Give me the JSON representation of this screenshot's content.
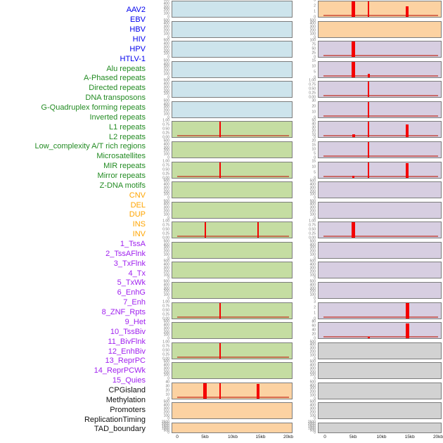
{
  "chart_data": {
    "type": "bar",
    "title": "",
    "description": "Two columns of stacked genomic mini-track bar panels over a 20kb window; red spikes mark peak loci",
    "x_axis": {
      "tick_labels": [
        "0",
        "5kb",
        "10kb",
        "15kb",
        "20kb"
      ],
      "tick_kb": [
        0,
        5,
        10,
        15,
        20
      ],
      "range_kb": [
        0,
        20
      ]
    },
    "peak_positions_kb": [
      5.0,
      7.7,
      14.6
    ],
    "category_colors": {
      "virus": "#0000EE",
      "repeat": "#228B22",
      "sv": "#FFA500",
      "chromatin": "#A021EF",
      "other": "#111111"
    },
    "panel_fills": {
      "blue": "#cde4ec",
      "green": "#c5dda2",
      "orange": "#fcd2a2",
      "purple": "#d7cee1",
      "gray": "#d2d2d2"
    },
    "spike_color": "#f40000",
    "baseline_color": "rgba(190,40,25,0.6)",
    "tick_sets": {
      "count500": [
        "500",
        "400",
        "300",
        "200",
        "100",
        "0"
      ],
      "frac": [
        "1.00",
        "0.75",
        "0.50",
        "0.25",
        "0.00"
      ],
      "dense2k": [
        "2500",
        "2000",
        "1500",
        "1000",
        "500",
        "0"
      ],
      "c40": [
        "40",
        "30",
        "20",
        "10",
        "0"
      ],
      "c3": [
        "3",
        "2",
        "1",
        "0"
      ],
      "c100": [
        "100",
        "75",
        "50",
        "25",
        "0"
      ],
      "c15": [
        "15",
        "10",
        "5",
        "0"
      ],
      "c30": [
        "30",
        "20",
        "10",
        "0"
      ],
      "c50": [
        "50",
        "40",
        "30",
        "20",
        "10",
        "0"
      ],
      "c20": [
        "20",
        "15",
        "10",
        "5",
        "0"
      ],
      "c80": [
        "80",
        "60",
        "40",
        "20",
        "0"
      ]
    },
    "tracks": [
      {
        "label": "AAV2",
        "category": "virus",
        "column": "left",
        "fill": "blue",
        "yticks": "count500",
        "baseline": false,
        "spikes": []
      },
      {
        "label": "EBV",
        "category": "virus",
        "column": "left",
        "fill": "blue",
        "yticks": "count500",
        "baseline": false,
        "spikes": []
      },
      {
        "label": "HBV",
        "category": "virus",
        "column": "left",
        "fill": "blue",
        "yticks": "count500",
        "baseline": false,
        "spikes": []
      },
      {
        "label": "HIV",
        "category": "virus",
        "column": "left",
        "fill": "blue",
        "yticks": "count500",
        "baseline": false,
        "spikes": []
      },
      {
        "label": "HPV",
        "category": "virus",
        "column": "left",
        "fill": "blue",
        "yticks": "count500",
        "baseline": false,
        "spikes": []
      },
      {
        "label": "HTLV-1",
        "category": "virus",
        "column": "left",
        "fill": "blue",
        "yticks": "count500",
        "baseline": false,
        "spikes": []
      },
      {
        "label": "Alu repeats",
        "category": "repeat",
        "column": "left",
        "fill": "green",
        "yticks": "frac",
        "baseline": true,
        "spikes": [
          {
            "kb": 7.7,
            "frac": 1.0,
            "w": 2
          }
        ]
      },
      {
        "label": "A-Phased repeats",
        "category": "repeat",
        "column": "left",
        "fill": "green",
        "yticks": "count500",
        "baseline": false,
        "spikes": []
      },
      {
        "label": "Directed repeats",
        "category": "repeat",
        "column": "left",
        "fill": "green",
        "yticks": "frac",
        "baseline": true,
        "spikes": [
          {
            "kb": 7.7,
            "frac": 1.0,
            "w": 2
          }
        ]
      },
      {
        "label": "DNA transposons",
        "category": "repeat",
        "column": "left",
        "fill": "green",
        "yticks": "count500",
        "baseline": false,
        "spikes": []
      },
      {
        "label": "G-Quadruplex forming repeats",
        "category": "repeat",
        "column": "left",
        "fill": "green",
        "yticks": "count500",
        "baseline": false,
        "spikes": []
      },
      {
        "label": "Inverted repeats",
        "category": "repeat",
        "column": "left",
        "fill": "green",
        "yticks": "frac",
        "baseline": true,
        "spikes": [
          {
            "kb": 5.0,
            "frac": 1.0,
            "w": 2
          },
          {
            "kb": 14.6,
            "frac": 1.0,
            "w": 2
          }
        ]
      },
      {
        "label": "L1 repeats",
        "category": "repeat",
        "column": "left",
        "fill": "green",
        "yticks": "count500",
        "baseline": false,
        "spikes": []
      },
      {
        "label": "L2 repeats",
        "category": "repeat",
        "column": "left",
        "fill": "green",
        "yticks": "count500",
        "baseline": false,
        "spikes": []
      },
      {
        "label": "Low_complexity A/T rich regions",
        "category": "repeat",
        "column": "left",
        "fill": "green",
        "yticks": "count500",
        "baseline": false,
        "spikes": []
      },
      {
        "label": "Microsatellites",
        "category": "repeat",
        "column": "left",
        "fill": "green",
        "yticks": "frac",
        "baseline": true,
        "spikes": [
          {
            "kb": 7.7,
            "frac": 1.0,
            "w": 2
          }
        ]
      },
      {
        "label": "MIR repeats",
        "category": "repeat",
        "column": "left",
        "fill": "green",
        "yticks": "count500",
        "baseline": false,
        "spikes": []
      },
      {
        "label": "Mirror repeats",
        "category": "repeat",
        "column": "left",
        "fill": "green",
        "yticks": "frac",
        "baseline": true,
        "spikes": [
          {
            "kb": 7.7,
            "frac": 1.0,
            "w": 2
          }
        ]
      },
      {
        "label": "Z-DNA motifs",
        "category": "repeat",
        "column": "left",
        "fill": "green",
        "yticks": "count500",
        "baseline": false,
        "spikes": []
      },
      {
        "label": "CNV",
        "category": "sv",
        "column": "left",
        "fill": "orange",
        "yticks": "c40",
        "baseline": true,
        "spikes": [
          {
            "kb": 5.0,
            "frac": 1.0,
            "w": 5
          },
          {
            "kb": 7.7,
            "frac": 1.0,
            "w": 2
          },
          {
            "kb": 14.6,
            "frac": 0.95,
            "w": 4
          }
        ]
      },
      {
        "label": "DEL",
        "category": "sv",
        "column": "left",
        "fill": "orange",
        "yticks": "count500",
        "baseline": false,
        "spikes": []
      },
      {
        "label": "DUP",
        "category": "sv",
        "column": "left",
        "fill": "orange",
        "yticks": "dense2k",
        "baseline": false,
        "spikes": []
      },
      {
        "label": "INS",
        "category": "sv",
        "column": "right",
        "fill": "orange",
        "yticks": "c3",
        "baseline": true,
        "spikes": [
          {
            "kb": 5.0,
            "frac": 1.0,
            "w": 5
          },
          {
            "kb": 7.7,
            "frac": 1.0,
            "w": 2
          },
          {
            "kb": 14.6,
            "frac": 0.7,
            "w": 4
          }
        ]
      },
      {
        "label": "INV",
        "category": "sv",
        "column": "right",
        "fill": "orange",
        "yticks": "count500",
        "baseline": false,
        "spikes": []
      },
      {
        "label": "1_TssA",
        "category": "chromatin",
        "column": "right",
        "fill": "purple",
        "yticks": "c100",
        "baseline": true,
        "spikes": [
          {
            "kb": 5.0,
            "frac": 1.0,
            "w": 5
          }
        ]
      },
      {
        "label": "2_TssAFlnk",
        "category": "chromatin",
        "column": "right",
        "fill": "purple",
        "yticks": "c15",
        "baseline": true,
        "spikes": [
          {
            "kb": 5.0,
            "frac": 1.0,
            "w": 5
          },
          {
            "kb": 7.7,
            "frac": 0.2,
            "w": 3
          }
        ]
      },
      {
        "label": "3_TxFlnk",
        "category": "chromatin",
        "column": "right",
        "fill": "purple",
        "yticks": "frac",
        "baseline": true,
        "spikes": [
          {
            "kb": 7.7,
            "frac": 1.0,
            "w": 2
          }
        ]
      },
      {
        "label": "4_Tx",
        "category": "chromatin",
        "column": "right",
        "fill": "purple",
        "yticks": "c30",
        "baseline": true,
        "spikes": [
          {
            "kb": 7.7,
            "frac": 1.0,
            "w": 2
          }
        ]
      },
      {
        "label": "5_TxWk",
        "category": "chromatin",
        "column": "right",
        "fill": "purple",
        "yticks": "c50",
        "baseline": true,
        "spikes": [
          {
            "kb": 5.0,
            "frac": 0.2,
            "w": 4
          },
          {
            "kb": 7.7,
            "frac": 1.0,
            "w": 2
          },
          {
            "kb": 14.6,
            "frac": 0.82,
            "w": 4
          }
        ]
      },
      {
        "label": "6_EnhG",
        "category": "chromatin",
        "column": "right",
        "fill": "purple",
        "yticks": "c20",
        "baseline": true,
        "spikes": [
          {
            "kb": 7.7,
            "frac": 1.0,
            "w": 2
          }
        ]
      },
      {
        "label": "7_Enh",
        "category": "chromatin",
        "column": "right",
        "fill": "purple",
        "yticks": "c15",
        "baseline": true,
        "spikes": [
          {
            "kb": 5.0,
            "frac": 0.12,
            "w": 3
          },
          {
            "kb": 7.7,
            "frac": 1.0,
            "w": 2
          },
          {
            "kb": 14.6,
            "frac": 0.92,
            "w": 4
          }
        ]
      },
      {
        "label": "8_ZNF_Rpts",
        "category": "chromatin",
        "column": "right",
        "fill": "purple",
        "yticks": "count500",
        "baseline": false,
        "spikes": []
      },
      {
        "label": "9_Het",
        "category": "chromatin",
        "column": "right",
        "fill": "purple",
        "yticks": "count500",
        "baseline": false,
        "spikes": []
      },
      {
        "label": "10_TssBiv",
        "category": "chromatin",
        "column": "right",
        "fill": "purple",
        "yticks": "frac",
        "baseline": true,
        "spikes": [
          {
            "kb": 5.0,
            "frac": 1.0,
            "w": 5
          }
        ]
      },
      {
        "label": "11_BivFlnk",
        "category": "chromatin",
        "column": "right",
        "fill": "purple",
        "yticks": "count500",
        "baseline": false,
        "spikes": []
      },
      {
        "label": "12_EnhBiv",
        "category": "chromatin",
        "column": "right",
        "fill": "purple",
        "yticks": "count500",
        "baseline": false,
        "spikes": []
      },
      {
        "label": "13_ReprPC",
        "category": "chromatin",
        "column": "right",
        "fill": "purple",
        "yticks": "count500",
        "baseline": false,
        "spikes": []
      },
      {
        "label": "14_ReprPCWk",
        "category": "chromatin",
        "column": "right",
        "fill": "purple",
        "yticks": "c3",
        "baseline": true,
        "spikes": [
          {
            "kb": 14.6,
            "frac": 1.0,
            "w": 5
          }
        ]
      },
      {
        "label": "15_Quies",
        "category": "chromatin",
        "column": "right",
        "fill": "purple",
        "yticks": "c80",
        "baseline": true,
        "spikes": [
          {
            "kb": 7.7,
            "frac": 0.1,
            "w": 3
          },
          {
            "kb": 14.6,
            "frac": 0.95,
            "w": 5
          }
        ]
      },
      {
        "label": "CPGisland",
        "category": "other",
        "column": "right",
        "fill": "gray",
        "yticks": "count500",
        "baseline": false,
        "spikes": []
      },
      {
        "label": "Methylation",
        "category": "other",
        "column": "right",
        "fill": "gray",
        "yticks": "count500",
        "baseline": false,
        "spikes": []
      },
      {
        "label": "Promoters",
        "category": "other",
        "column": "right",
        "fill": "gray",
        "yticks": "count500",
        "baseline": false,
        "spikes": []
      },
      {
        "label": "ReplicationTiming",
        "category": "other",
        "column": "right",
        "fill": "gray",
        "yticks": "count500",
        "baseline": false,
        "spikes": []
      },
      {
        "label": "TAD_boundary",
        "category": "other",
        "column": "right",
        "fill": "gray",
        "yticks": "dense2k",
        "baseline": false,
        "spikes": []
      }
    ]
  }
}
